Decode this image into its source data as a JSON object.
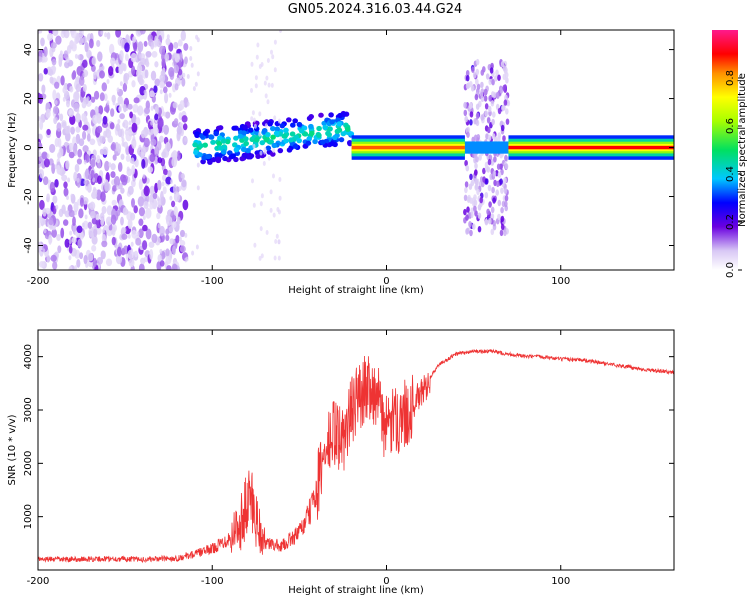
{
  "title": "GN05.2024.316.03.44.G24",
  "chart_data": [
    {
      "type": "heatmap",
      "xlabel": "Height of straight line (km)",
      "ylabel": "Frequency (Hz)",
      "xlim": [
        -200,
        165
      ],
      "ylim": [
        -50,
        48
      ],
      "x_ticks": [
        -200,
        -100,
        0,
        100
      ],
      "y_ticks": [
        -40,
        -20,
        0,
        20,
        40
      ],
      "colorbar": {
        "label": "Normalized spectral amplitude",
        "ticks": [
          0.0,
          0.2,
          0.4,
          0.6,
          0.8
        ],
        "range": [
          0,
          1
        ]
      },
      "regions": [
        {
          "x_range": [
            -200,
            -115
          ],
          "description": "scattered noise",
          "level": 0.15
        },
        {
          "x_range": [
            -110,
            -20
          ],
          "center_freq_start": 0,
          "center_freq_end": 8,
          "level": 0.45
        },
        {
          "x_range": [
            -20,
            45
          ],
          "center_freq": 0,
          "level": 0.85
        },
        {
          "x_range": [
            45,
            70
          ],
          "description": "broadband spread",
          "level": 0.2
        },
        {
          "x_range": [
            70,
            165
          ],
          "center_freq": 0,
          "level": 0.9
        }
      ]
    },
    {
      "type": "line",
      "xlabel": "Height of straight line (km)",
      "ylabel": "SNR (10 * v/v)",
      "xlim": [
        -200,
        165
      ],
      "ylim": [
        0,
        4500
      ],
      "x_ticks": [
        -200,
        -100,
        0,
        100
      ],
      "y_ticks": [
        1000,
        2000,
        3000,
        4000
      ],
      "color": "#ee3333",
      "series": [
        {
          "x": [
            -200,
            -180,
            -160,
            -140,
            -120,
            -110,
            -100,
            -90,
            -82,
            -78,
            -74,
            -70,
            -60,
            -50,
            -45,
            -40,
            -35,
            -30,
            -25,
            -20,
            -15,
            -10,
            -5,
            0,
            5,
            10,
            15,
            20,
            25,
            30,
            40,
            50,
            60,
            70,
            80,
            90,
            100,
            110,
            120,
            130,
            140,
            150,
            165
          ],
          "values": [
            200,
            200,
            210,
            200,
            220,
            300,
            400,
            600,
            1000,
            1400,
            900,
            500,
            450,
            700,
            1000,
            1500,
            2200,
            2600,
            2400,
            3000,
            3300,
            3500,
            3200,
            2600,
            2800,
            2900,
            3100,
            3300,
            3600,
            3850,
            4050,
            4100,
            4100,
            4050,
            4000,
            4000,
            3950,
            3950,
            3900,
            3850,
            3800,
            3750,
            3700
          ]
        }
      ]
    }
  ]
}
